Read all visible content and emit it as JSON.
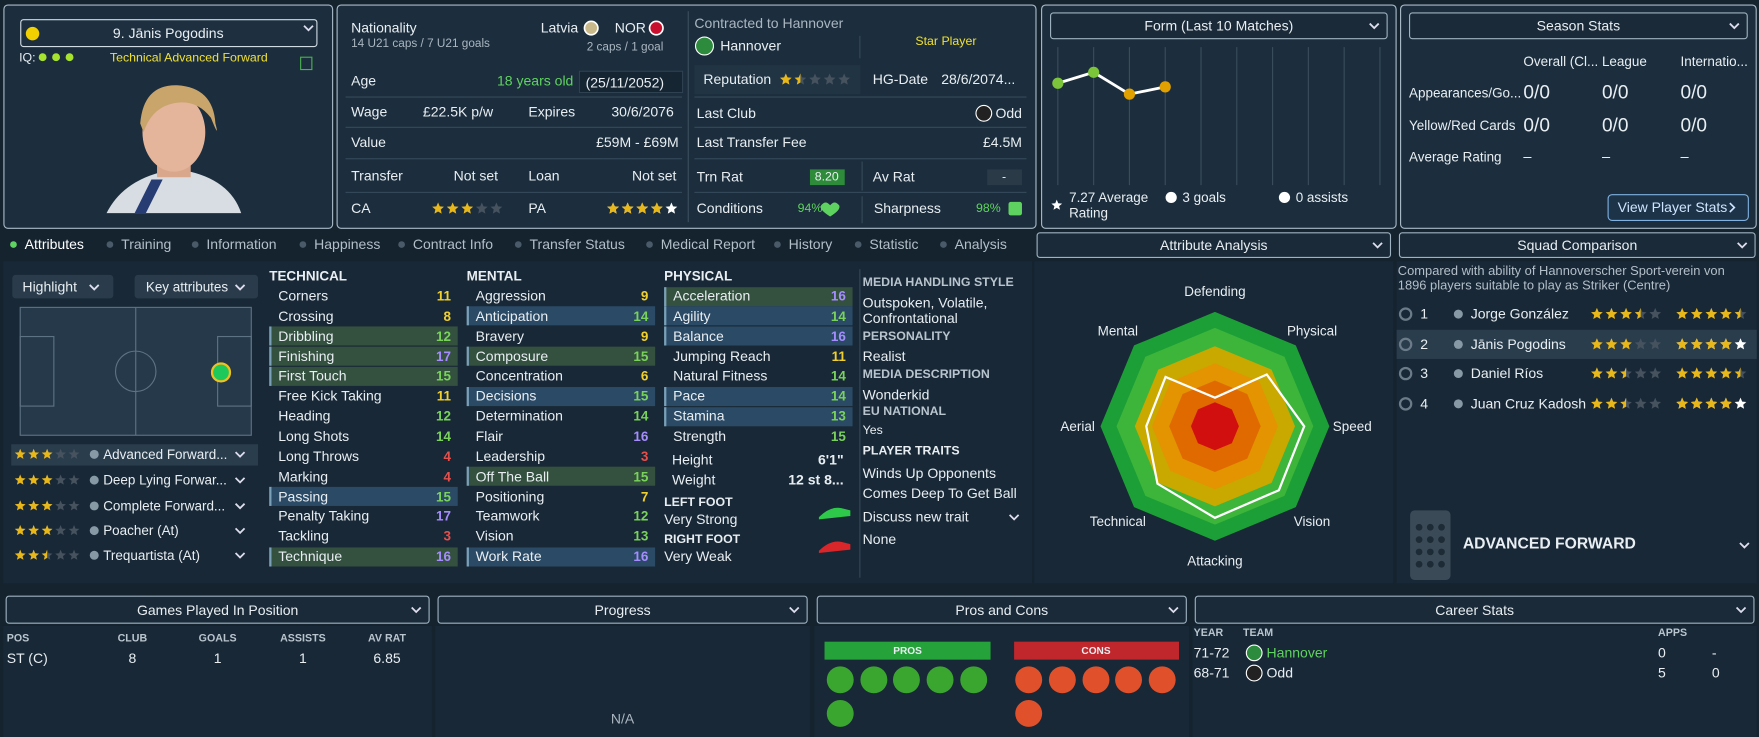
{
  "player_card": {
    "name": "9. Jānis Pogodins",
    "iq_label": "IQ:",
    "role": "Technical Advanced Forward"
  },
  "info": {
    "nationality_label": "Nationality",
    "nationality": "Latvia",
    "second_nation": "NOR",
    "u21": "14 U21 caps / 7 U21 goals",
    "caps": "2 caps / 1 goal",
    "age_label": "Age",
    "age": "18 years old",
    "dob": "(25/11/2052)",
    "wage_label": "Wage",
    "wage": "£22.5K p/w",
    "expires_label": "Expires",
    "expires": "30/6/2076",
    "value_label": "Value",
    "value": "£59M - £69M",
    "transfer_label": "Transfer",
    "transfer": "Not set",
    "loan_label": "Loan",
    "loan": "Not set",
    "ca_label": "CA",
    "ca_stars": 3,
    "pa_label": "PA",
    "pa_stars": 4,
    "pa_stars_max": 5
  },
  "contract": {
    "label": "Contracted to Hannover",
    "club": "Hannover",
    "status": "Star Player",
    "reputation_label": "Reputation",
    "reputation_stars": 1.5,
    "hg_label": "HG-Date",
    "hg_date": "28/6/2074...",
    "last_club_label": "Last Club",
    "last_club": "Odd",
    "fee_label": "Last Transfer Fee",
    "fee": "£4.5M",
    "trn_label": "Trn Rat",
    "trn": "8.20",
    "av_label": "Av Rat",
    "av": "-",
    "conditions_label": "Conditions",
    "conditions": "94%",
    "sharpness_label": "Sharpness",
    "sharpness": "98%"
  },
  "form": {
    "type": "line",
    "title": "Form (Last 10 Matches)",
    "values": [
      7.3,
      7.6,
      7.0,
      7.2
    ],
    "colors": [
      "#7cc43a",
      "#7cc43a",
      "#e0a000",
      "#e0a000"
    ],
    "ylim": [
      4.5,
      8.2
    ],
    "average": "7.27 Average Rating",
    "goals": "3 goals",
    "assists": "0 assists"
  },
  "season_stats": {
    "title": "Season Stats",
    "columns": [
      "Overall (Cl...",
      "League",
      "Internatio..."
    ],
    "rows": [
      {
        "label": "Appearances/Go...",
        "values": [
          "0/0",
          "0/0",
          "0/0"
        ]
      },
      {
        "label": "Yellow/Red Cards",
        "values": [
          "0/0",
          "0/0",
          "0/0"
        ]
      },
      {
        "label": "Average Rating",
        "values": [
          "–",
          "–",
          "–"
        ]
      }
    ],
    "button": "View Player Stats"
  },
  "tabs": [
    "Attributes",
    "Training",
    "Information",
    "Happiness",
    "Contract Info",
    "Transfer Status",
    "Medical Report",
    "History",
    "Statistic",
    "Analysis"
  ],
  "active_tab": 0,
  "controls": {
    "highlight": "Highlight",
    "key_attributes": "Key attributes"
  },
  "roles": [
    {
      "name": "Advanced Forward...",
      "stars": 3
    },
    {
      "name": "Deep Lying Forwar...",
      "stars": 3
    },
    {
      "name": "Complete Forward...",
      "stars": 3
    },
    {
      "name": "Poacher (At)",
      "stars": 3
    },
    {
      "name": "Trequartista (At)",
      "stars": 2.5
    }
  ],
  "attributes": {
    "technical": {
      "title": "TECHNICAL",
      "items": [
        {
          "name": "Corners",
          "value": 11
        },
        {
          "name": "Crossing",
          "value": 8
        },
        {
          "name": "Dribbling",
          "value": 12,
          "highlight": "#34503f"
        },
        {
          "name": "Finishing",
          "value": 17,
          "highlight": "#34503f"
        },
        {
          "name": "First Touch",
          "value": 15,
          "highlight": "#34503f"
        },
        {
          "name": "Free Kick Taking",
          "value": 11
        },
        {
          "name": "Heading",
          "value": 12
        },
        {
          "name": "Long Shots",
          "value": 14
        },
        {
          "name": "Long Throws",
          "value": 4
        },
        {
          "name": "Marking",
          "value": 4
        },
        {
          "name": "Passing",
          "value": 15,
          "highlight": "#2b4a66"
        },
        {
          "name": "Penalty Taking",
          "value": 17
        },
        {
          "name": "Tackling",
          "value": 3
        },
        {
          "name": "Technique",
          "value": 16,
          "highlight": "#34503f"
        }
      ]
    },
    "mental": {
      "title": "MENTAL",
      "items": [
        {
          "name": "Aggression",
          "value": 9
        },
        {
          "name": "Anticipation",
          "value": 14,
          "highlight": "#2b4a66"
        },
        {
          "name": "Bravery",
          "value": 9
        },
        {
          "name": "Composure",
          "value": 15,
          "highlight": "#34503f"
        },
        {
          "name": "Concentration",
          "value": 6
        },
        {
          "name": "Decisions",
          "value": 15,
          "highlight": "#2b4a66"
        },
        {
          "name": "Determination",
          "value": 14
        },
        {
          "name": "Flair",
          "value": 16
        },
        {
          "name": "Leadership",
          "value": 3
        },
        {
          "name": "Off The Ball",
          "value": 15,
          "highlight": "#34503f"
        },
        {
          "name": "Positioning",
          "value": 7
        },
        {
          "name": "Teamwork",
          "value": 12
        },
        {
          "name": "Vision",
          "value": 13
        },
        {
          "name": "Work Rate",
          "value": 16,
          "highlight": "#2b4a66"
        }
      ]
    },
    "physical": {
      "title": "PHYSICAL",
      "items": [
        {
          "name": "Acceleration",
          "value": 16,
          "highlight": "#34503f"
        },
        {
          "name": "Agility",
          "value": 14,
          "highlight": "#2b4a66"
        },
        {
          "name": "Balance",
          "value": 16,
          "highlight": "#2b4a66"
        },
        {
          "name": "Jumping Reach",
          "value": 11
        },
        {
          "name": "Natural Fitness",
          "value": 14
        },
        {
          "name": "Pace",
          "value": 14,
          "highlight": "#2b4a66"
        },
        {
          "name": "Stamina",
          "value": 13,
          "highlight": "#2b4a66"
        },
        {
          "name": "Strength",
          "value": 15
        }
      ],
      "height_label": "Height",
      "height": "6'1\"",
      "weight_label": "Weight",
      "weight": "12 st 8...",
      "left_foot_label": "LEFT FOOT",
      "left_foot": "Very Strong",
      "right_foot_label": "RIGHT FOOT",
      "right_foot": "Very Weak"
    }
  },
  "media": {
    "handling_label": "MEDIA HANDLING STYLE",
    "handling": "Outspoken, Volatile, Confrontational",
    "personality_label": "PERSONALITY",
    "personality": "Realist",
    "description_label": "MEDIA DESCRIPTION",
    "description": "Wonderkid",
    "eu_label": "EU NATIONAL",
    "eu": "Yes",
    "traits_label": "PLAYER TRAITS",
    "traits": [
      "Winds Up Opponents",
      "Comes Deep To Get Ball"
    ],
    "discuss": "Discuss new trait",
    "none": "None"
  },
  "attribute_analysis": {
    "type": "radar",
    "title": "Attribute Analysis",
    "axes": [
      "Defending",
      "Physical",
      "Speed",
      "Vision",
      "Attacking",
      "Technical",
      "Aerial",
      "Mental"
    ],
    "values": [
      25,
      64,
      78,
      79,
      80,
      71,
      60,
      61
    ],
    "rlim": [
      0,
      100
    ]
  },
  "squad": {
    "title": "Squad Comparison",
    "description": "Compared with ability of Hannoverscher Sport-verein von 1896 players suitable to play as Striker (Centre)",
    "rows": [
      {
        "rank": 1,
        "name": "Jorge González",
        "ca": 3.5,
        "pa": 4.5
      },
      {
        "rank": 2,
        "name": "Jānis Pogodins",
        "ca": 3,
        "pa": 4,
        "pa_max": 5
      },
      {
        "rank": 3,
        "name": "Daniel Ríos",
        "ca": 2.5,
        "pa": 4.5
      },
      {
        "rank": 4,
        "name": "Juan Cruz Kadosh",
        "ca": 2.5,
        "pa": 4,
        "pa_max": 5
      }
    ],
    "role": "ADVANCED FORWARD"
  },
  "games": {
    "title": "Games Played In Position",
    "columns": [
      "POS",
      "CLUB",
      "GOALS",
      "ASSISTS",
      "AV RAT"
    ],
    "rows": [
      [
        "ST (C)",
        8,
        1,
        1,
        6.85
      ]
    ]
  },
  "progress": {
    "title": "Progress",
    "empty": "N/A"
  },
  "pros_cons": {
    "title": "Pros and Cons",
    "pros": "PROS",
    "cons": "CONS"
  },
  "career": {
    "title": "Career Stats",
    "columns": [
      "YEAR",
      "TEAM",
      "APPS"
    ],
    "rows": [
      [
        "71-72",
        "Hannover",
        0,
        "-"
      ],
      [
        "68-71",
        "Odd",
        5,
        0
      ]
    ]
  }
}
